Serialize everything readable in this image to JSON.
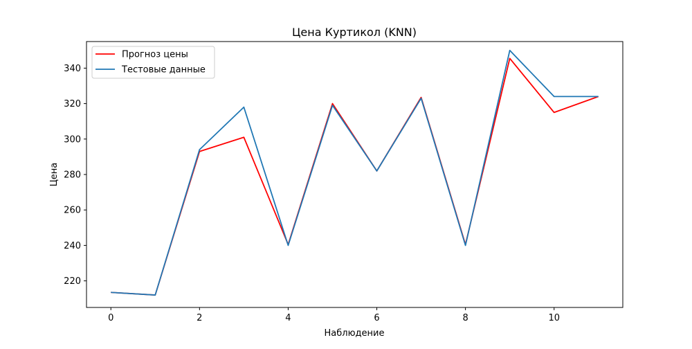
{
  "chart_data": {
    "type": "line",
    "title": "Цена Куртикол  (KNN)",
    "xlabel": "Наблюдение",
    "ylabel": "Цена",
    "x": [
      0,
      1,
      2,
      3,
      4,
      5,
      6,
      7,
      8,
      9,
      10,
      11
    ],
    "xlim": [
      -0.55,
      11.55
    ],
    "ylim": [
      205,
      355
    ],
    "xticks": [
      0,
      2,
      4,
      6,
      8,
      10
    ],
    "yticks": [
      220,
      240,
      260,
      280,
      300,
      320,
      340
    ],
    "grid": false,
    "legend_position": "top-left",
    "series": [
      {
        "name": "Прогноз цены",
        "color": "#ff0000",
        "values": [
          213.5,
          212,
          293,
          301,
          240.5,
          320,
          282,
          323.5,
          240.5,
          345.5,
          315,
          324
        ]
      },
      {
        "name": "Тестовые данные",
        "color": "#1f77b4",
        "values": [
          213.5,
          212,
          294,
          318,
          240,
          319,
          282,
          323,
          240,
          350,
          324,
          324
        ]
      }
    ]
  }
}
